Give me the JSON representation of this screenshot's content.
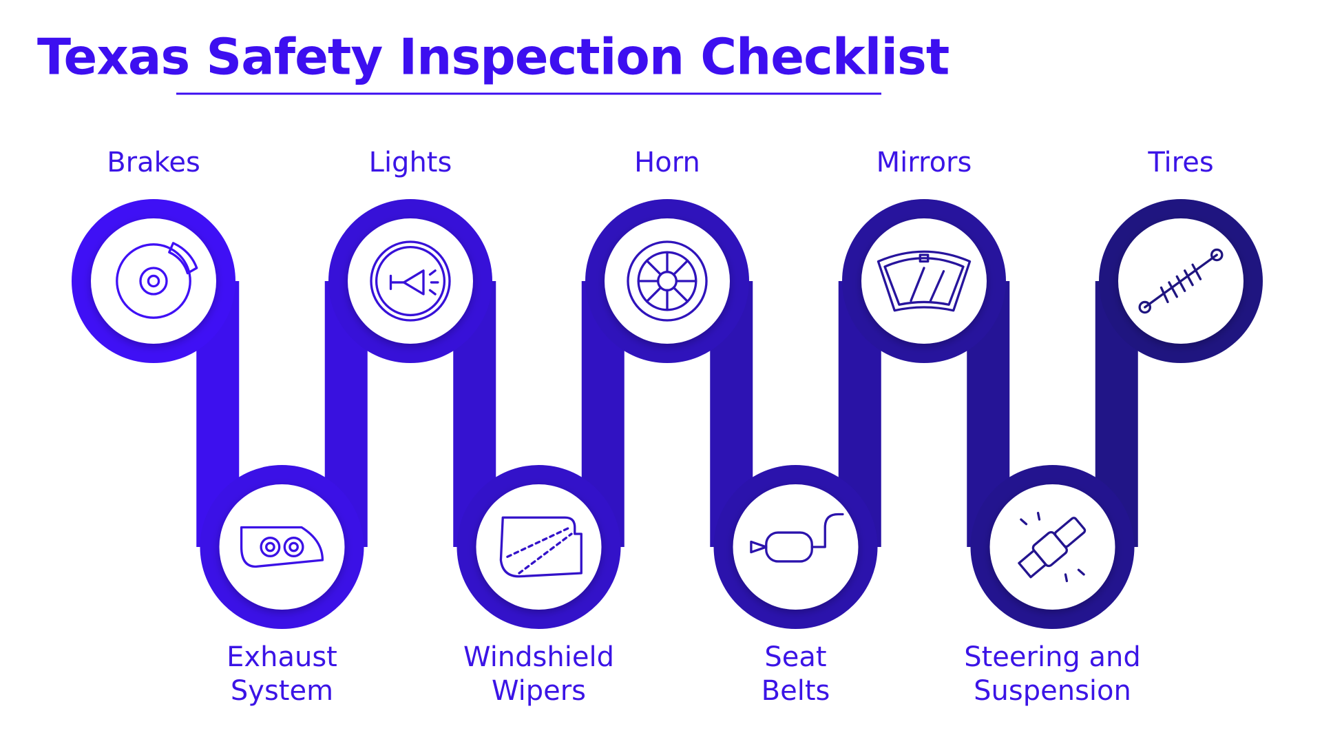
{
  "title": "Texas Safety Inspection Checklist",
  "items": [
    {
      "label": [
        "Brakes"
      ]
    },
    {
      "label": [
        "Exhaust",
        "System"
      ]
    },
    {
      "label": [
        "Lights"
      ]
    },
    {
      "label": [
        "Windshield",
        "Wipers"
      ]
    },
    {
      "label": [
        "Horn"
      ]
    },
    {
      "label": [
        "Seat",
        "Belts"
      ]
    },
    {
      "label": [
        "Mirrors"
      ]
    },
    {
      "label": [
        "Steering and",
        "Suspension"
      ]
    },
    {
      "label": [
        "Tires"
      ]
    }
  ]
}
